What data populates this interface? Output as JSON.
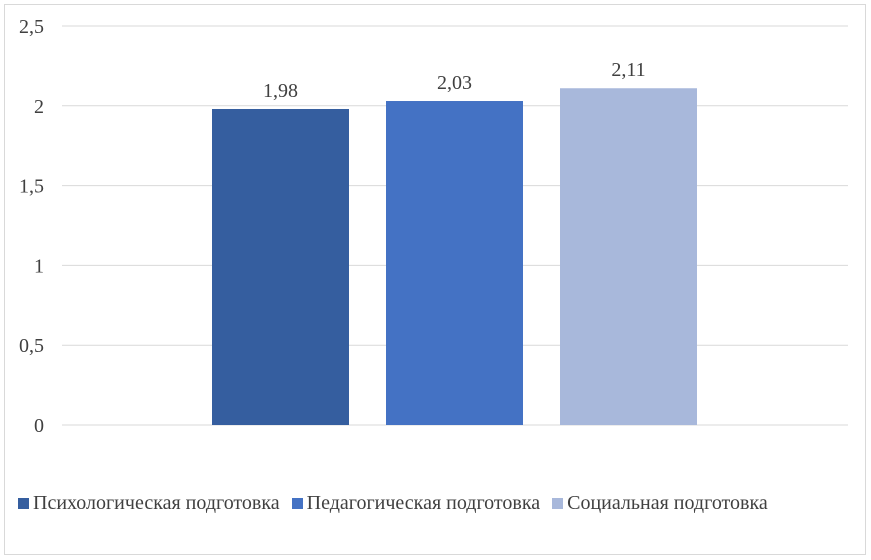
{
  "chart_data": {
    "type": "bar",
    "title": "",
    "xlabel": "",
    "ylabel": "",
    "ylim": [
      0,
      2.5
    ],
    "yticks": [
      "0",
      "0,5",
      "1",
      "1,5",
      "2",
      "2,5"
    ],
    "grid": true,
    "legend_position": "bottom",
    "series": [
      {
        "name": "Психологическая подготовка",
        "value": 1.98,
        "label": "1,98",
        "color": "#355e9f"
      },
      {
        "name": "Педагогическая подготовка",
        "value": 2.03,
        "label": "2,03",
        "color": "#4472c4"
      },
      {
        "name": "Социальная подготовка",
        "value": 2.11,
        "label": "2,11",
        "color": "#a8b8db"
      }
    ]
  }
}
